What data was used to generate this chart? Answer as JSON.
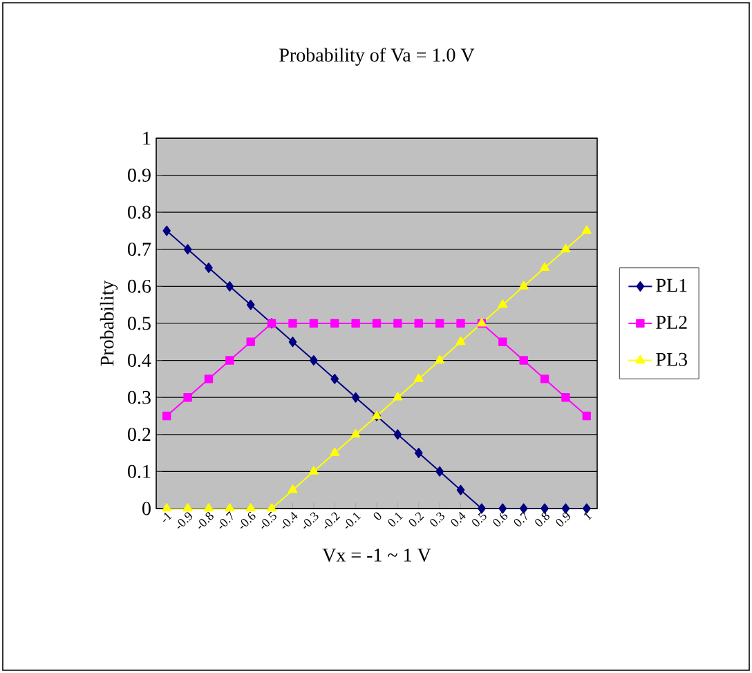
{
  "chart_data": {
    "type": "line",
    "title": "Probability of Va = 1.0 V",
    "xlabel": "Vx = -1 ~ 1 V",
    "ylabel": "Probability",
    "categories": [
      "-1",
      "-0.9",
      "-0.8",
      "-0.7",
      "-0.6",
      "-0.5",
      "-0.4",
      "-0.3",
      "-0.2",
      "-0.1",
      "0",
      "0.1",
      "0.2",
      "0.3",
      "0.4",
      "0.5",
      "0.6",
      "0.7",
      "0.8",
      "0.9",
      "1"
    ],
    "series": [
      {
        "name": "PL1",
        "color": "#000080",
        "marker": "diamond",
        "values": [
          0.75,
          0.7,
          0.65,
          0.6,
          0.55,
          0.5,
          0.45,
          0.4,
          0.35,
          0.3,
          0.25,
          0.2,
          0.15,
          0.1,
          0.05,
          0,
          0,
          0,
          0,
          0,
          0
        ]
      },
      {
        "name": "PL2",
        "color": "#ff00ff",
        "marker": "square",
        "values": [
          0.25,
          0.3,
          0.35,
          0.4,
          0.45,
          0.5,
          0.5,
          0.5,
          0.5,
          0.5,
          0.5,
          0.5,
          0.5,
          0.5,
          0.5,
          0.5,
          0.45,
          0.4,
          0.35,
          0.3,
          0.25
        ]
      },
      {
        "name": "PL3",
        "color": "#ffff00",
        "marker": "triangle",
        "values": [
          0,
          0,
          0,
          0,
          0,
          0,
          0.05,
          0.1,
          0.15,
          0.2,
          0.25,
          0.3,
          0.35,
          0.4,
          0.45,
          0.5,
          0.55,
          0.6,
          0.65,
          0.7,
          0.75
        ]
      }
    ],
    "ylim": [
      0,
      1
    ],
    "yticks": [
      0,
      0.1,
      0.2,
      0.3,
      0.4,
      0.5,
      0.6,
      0.7,
      0.8,
      0.9,
      1
    ],
    "grid": "y",
    "legend": "right",
    "line_style": "solid"
  }
}
